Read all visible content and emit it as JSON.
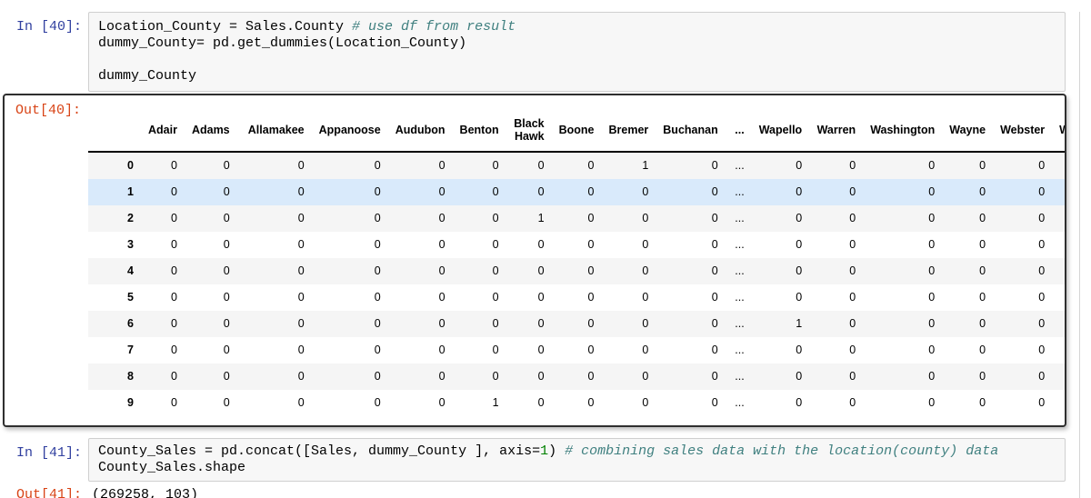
{
  "cells": {
    "in40": {
      "prompt": "In [40]:",
      "lines": [
        [
          {
            "text": "Location_County = Sales.County ",
            "type": "plain"
          },
          {
            "text": "# use df from result",
            "type": "comment"
          }
        ],
        [
          {
            "text": "dummy_County= pd.get_dummies(Location_County)",
            "type": "plain"
          }
        ],
        [],
        [
          {
            "text": "dummy_County",
            "type": "plain"
          }
        ]
      ]
    },
    "out40": {
      "prompt": "Out[40]:",
      "dataframe": {
        "columns": [
          "",
          "Adair",
          "Adams",
          "Allamakee",
          "Appanoose",
          "Audubon",
          "Benton",
          "Black Hawk",
          "Boone",
          "Bremer",
          "Buchanan",
          "...",
          "Wapello",
          "Warren",
          "Washington",
          "Wayne",
          "Webster",
          "Winnebago"
        ],
        "rows": [
          [
            "0",
            "0",
            "0",
            "0",
            "0",
            "0",
            "0",
            "0",
            "0",
            "1",
            "0",
            "...",
            "0",
            "0",
            "0",
            "0",
            "0",
            ""
          ],
          [
            "1",
            "0",
            "0",
            "0",
            "0",
            "0",
            "0",
            "0",
            "0",
            "0",
            "0",
            "...",
            "0",
            "0",
            "0",
            "0",
            "0",
            ""
          ],
          [
            "2",
            "0",
            "0",
            "0",
            "0",
            "0",
            "0",
            "1",
            "0",
            "0",
            "0",
            "...",
            "0",
            "0",
            "0",
            "0",
            "0",
            ""
          ],
          [
            "3",
            "0",
            "0",
            "0",
            "0",
            "0",
            "0",
            "0",
            "0",
            "0",
            "0",
            "...",
            "0",
            "0",
            "0",
            "0",
            "0",
            ""
          ],
          [
            "4",
            "0",
            "0",
            "0",
            "0",
            "0",
            "0",
            "0",
            "0",
            "0",
            "0",
            "...",
            "0",
            "0",
            "0",
            "0",
            "0",
            ""
          ],
          [
            "5",
            "0",
            "0",
            "0",
            "0",
            "0",
            "0",
            "0",
            "0",
            "0",
            "0",
            "...",
            "0",
            "0",
            "0",
            "0",
            "0",
            ""
          ],
          [
            "6",
            "0",
            "0",
            "0",
            "0",
            "0",
            "0",
            "0",
            "0",
            "0",
            "0",
            "...",
            "1",
            "0",
            "0",
            "0",
            "0",
            ""
          ],
          [
            "7",
            "0",
            "0",
            "0",
            "0",
            "0",
            "0",
            "0",
            "0",
            "0",
            "0",
            "...",
            "0",
            "0",
            "0",
            "0",
            "0",
            ""
          ],
          [
            "8",
            "0",
            "0",
            "0",
            "0",
            "0",
            "0",
            "0",
            "0",
            "0",
            "0",
            "...",
            "0",
            "0",
            "0",
            "0",
            "0",
            ""
          ],
          [
            "9",
            "0",
            "0",
            "0",
            "0",
            "0",
            "1",
            "0",
            "0",
            "0",
            "0",
            "...",
            "0",
            "0",
            "0",
            "0",
            "0",
            ""
          ]
        ],
        "highlighted_row": 1
      }
    },
    "in41": {
      "prompt": "In [41]:",
      "lines": [
        [
          {
            "text": "County_Sales = pd.concat([Sales, dummy_County ], axis=",
            "type": "plain"
          },
          {
            "text": "1",
            "type": "number"
          },
          {
            "text": ") ",
            "type": "plain"
          },
          {
            "text": "# combining sales data with the location(county) data",
            "type": "comment"
          }
        ],
        [
          {
            "text": "County_Sales.shape",
            "type": "plain"
          }
        ]
      ]
    },
    "out41": {
      "prompt": "Out[41]:",
      "value": "(269258, 103)"
    }
  },
  "colors": {
    "in_prompt": "#303F9F",
    "out_prompt": "#D84315",
    "comment": "#408080",
    "number": "#008000",
    "row_highlight": "#d9eafb",
    "row_stripe": "#f5f5f5",
    "input_bg": "#f7f7f7"
  }
}
